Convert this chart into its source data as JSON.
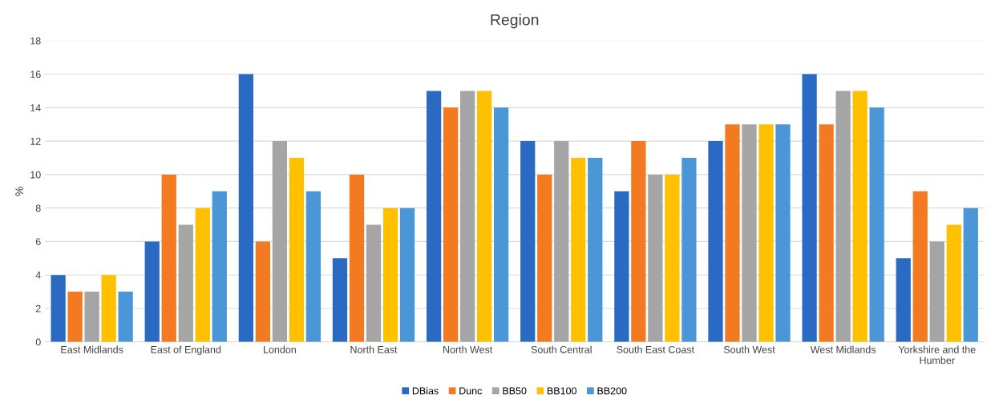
{
  "chart_data": {
    "type": "bar",
    "title": "Region",
    "ylabel": "%",
    "categories": [
      "East Midlands",
      "East of England",
      "London",
      "North East",
      "North West",
      "South Central",
      "South East Coast",
      "South West",
      "West Midlands",
      "Yorkshire and the\nHumber"
    ],
    "series": [
      {
        "name": "DBias",
        "color": "#2a6ac2",
        "values": [
          4,
          6,
          16,
          5,
          15,
          12,
          9,
          12,
          16,
          5
        ]
      },
      {
        "name": "Dunc",
        "color": "#f47a22",
        "values": [
          3,
          10,
          6,
          10,
          14,
          10,
          12,
          13,
          13,
          9
        ]
      },
      {
        "name": "BB50",
        "color": "#a5a5a5",
        "values": [
          3,
          7,
          12,
          7,
          15,
          12,
          10,
          13,
          15,
          6
        ]
      },
      {
        "name": "BB100",
        "color": "#ffc000",
        "values": [
          4,
          8,
          11,
          8,
          15,
          11,
          10,
          13,
          15,
          7
        ]
      },
      {
        "name": "BB200",
        "color": "#4a96d6",
        "values": [
          3,
          9,
          9,
          8,
          14,
          11,
          11,
          13,
          14,
          8
        ]
      }
    ],
    "ylim": [
      0,
      18
    ],
    "yticks": [
      0,
      2,
      4,
      6,
      8,
      10,
      12,
      14,
      16,
      18
    ],
    "grid": "y",
    "legend": "bottom"
  }
}
